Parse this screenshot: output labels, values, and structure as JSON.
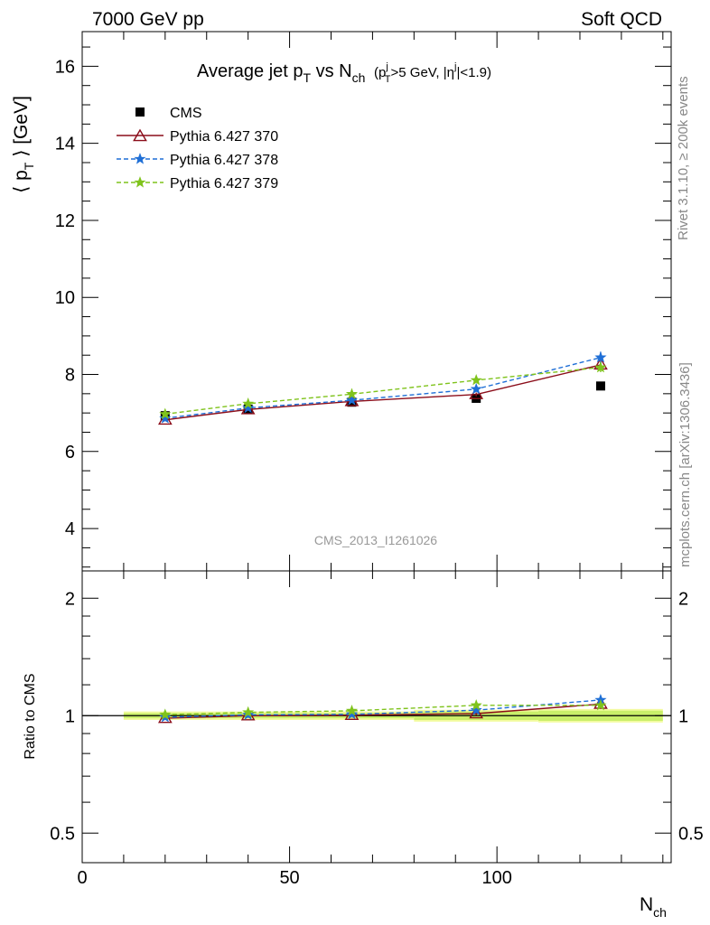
{
  "header": {
    "left": "7000 GeV pp",
    "right": "Soft QCD"
  },
  "side_labels": {
    "rivet": "Rivet 3.1.10, ≥ 200k events",
    "mcplots": "mcplots.cern.ch [arXiv:1306.3436]"
  },
  "analysis_id": "CMS_2013_I1261026",
  "colors": {
    "cms": "#000000",
    "p370": "#8b0d1a",
    "p378": "#1f6fd6",
    "p379": "#7fc31c",
    "band_outer": "#f3fba0",
    "band_inner": "#c9ef6a"
  },
  "chart_data": [
    {
      "type": "line",
      "title": "Average jet pT vs Nch (pTj>5 GeV, |ηj|<1.9)",
      "title_parts": {
        "main": "Average jet p",
        "sub_t": "T",
        "vs": " vs N",
        "sub_ch": "ch",
        "cut_open": "(p",
        "cut_sub_t": "T",
        "cut_sup_j": "j",
        "cut_mid": ">5 GeV, |η",
        "cut_sup_j2": "j",
        "cut_close": "|<1.9)"
      },
      "ylabel": "⟨ pT ⟩ [GeV]",
      "ylabel_parts": {
        "open": "⟨ p",
        "sub": "T",
        "close": " ⟩ [GeV]"
      },
      "xlim": [
        0,
        142
      ],
      "ylim": [
        2.9,
        16.9
      ],
      "yticks": [
        4,
        6,
        8,
        10,
        12,
        14,
        16
      ],
      "legend": [
        "CMS",
        "Pythia 6.427 370",
        "Pythia 6.427 378",
        "Pythia 6.427 379"
      ],
      "legend_position": "top-left",
      "series": [
        {
          "name": "CMS",
          "style": "square-marker",
          "x": [
            20,
            40,
            65,
            95,
            125
          ],
          "y": [
            6.93,
            7.1,
            7.28,
            7.38,
            7.7
          ],
          "yerr": [
            0.05,
            0.05,
            0.05,
            0.05,
            0.05
          ]
        },
        {
          "name": "Pythia 6.427 370",
          "style": "solid-triangle",
          "x": [
            20,
            40,
            65,
            95,
            125
          ],
          "y": [
            6.82,
            7.09,
            7.3,
            7.48,
            8.25
          ],
          "yerr": [
            0.03,
            0.03,
            0.04,
            0.05,
            0.12
          ]
        },
        {
          "name": "Pythia 6.427 378",
          "style": "dashed-star",
          "x": [
            20,
            40,
            65,
            95,
            125
          ],
          "y": [
            6.86,
            7.13,
            7.33,
            7.62,
            8.44
          ],
          "yerr": [
            0.03,
            0.03,
            0.04,
            0.07,
            0.15
          ]
        },
        {
          "name": "Pythia 6.427 379",
          "style": "dashed-star",
          "x": [
            20,
            40,
            65,
            95,
            125
          ],
          "y": [
            6.97,
            7.24,
            7.49,
            7.85,
            8.18
          ],
          "yerr": [
            0.03,
            0.03,
            0.04,
            0.06,
            0.12
          ]
        }
      ]
    },
    {
      "type": "line",
      "ylabel": "Ratio to CMS",
      "xlabel": "Nch",
      "xlabel_parts": {
        "main": "N",
        "sub": "ch"
      },
      "xlim": [
        0,
        142
      ],
      "ylim": [
        0.42,
        2.35
      ],
      "log_y": true,
      "yticks": [
        0.5,
        1,
        2
      ],
      "xticks": [
        0,
        50,
        100
      ],
      "reference_band": [
        {
          "xmin": 10,
          "xmax": 30,
          "low": 0.985,
          "high": 1.015
        },
        {
          "xmin": 30,
          "xmax": 50,
          "low": 0.985,
          "high": 1.015
        },
        {
          "xmin": 50,
          "xmax": 80,
          "low": 0.985,
          "high": 1.015
        },
        {
          "xmin": 80,
          "xmax": 110,
          "low": 0.975,
          "high": 1.025
        },
        {
          "xmin": 110,
          "xmax": 140,
          "low": 0.97,
          "high": 1.03
        }
      ],
      "series": [
        {
          "name": "Pythia 6.427 370",
          "x": [
            20,
            40,
            65,
            95,
            125
          ],
          "y": [
            0.985,
            1.0,
            1.003,
            1.012,
            1.071
          ],
          "yerr": [
            0.005,
            0.005,
            0.006,
            0.008,
            0.016
          ]
        },
        {
          "name": "Pythia 6.427 378",
          "x": [
            20,
            40,
            65,
            95,
            125
          ],
          "y": [
            0.991,
            1.005,
            1.008,
            1.033,
            1.097
          ],
          "yerr": [
            0.005,
            0.005,
            0.006,
            0.01,
            0.02
          ]
        },
        {
          "name": "Pythia 6.427 379",
          "x": [
            20,
            40,
            65,
            95,
            125
          ],
          "y": [
            1.006,
            1.02,
            1.029,
            1.063,
            1.063
          ],
          "yerr": [
            0.005,
            0.005,
            0.006,
            0.009,
            0.016
          ]
        }
      ]
    }
  ]
}
